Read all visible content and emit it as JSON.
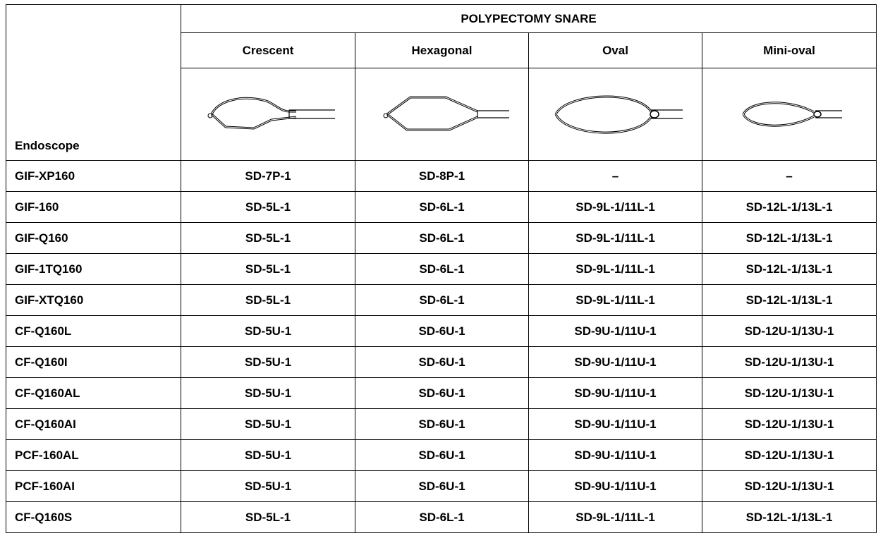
{
  "header": {
    "title": "POLYPECTOMY SNARE",
    "corner": "Endoscope",
    "columns": [
      "Crescent",
      "Hexagonal",
      "Oval",
      "Mini-oval"
    ]
  },
  "table": {
    "rows": [
      [
        "GIF-XP160",
        "SD-7P-1",
        "SD-8P-1",
        "–",
        "–"
      ],
      [
        "GIF-160",
        "SD-5L-1",
        "SD-6L-1",
        "SD-9L-1/11L-1",
        "SD-12L-1/13L-1"
      ],
      [
        "GIF-Q160",
        "SD-5L-1",
        "SD-6L-1",
        "SD-9L-1/11L-1",
        "SD-12L-1/13L-1"
      ],
      [
        "GIF-1TQ160",
        "SD-5L-1",
        "SD-6L-1",
        "SD-9L-1/11L-1",
        "SD-12L-1/13L-1"
      ],
      [
        "GIF-XTQ160",
        "SD-5L-1",
        "SD-6L-1",
        "SD-9L-1/11L-1",
        "SD-12L-1/13L-1"
      ],
      [
        "CF-Q160L",
        "SD-5U-1",
        "SD-6U-1",
        "SD-9U-1/11U-1",
        "SD-12U-1/13U-1"
      ],
      [
        "CF-Q160I",
        "SD-5U-1",
        "SD-6U-1",
        "SD-9U-1/11U-1",
        "SD-12U-1/13U-1"
      ],
      [
        "CF-Q160AL",
        "SD-5U-1",
        "SD-6U-1",
        "SD-9U-1/11U-1",
        "SD-12U-1/13U-1"
      ],
      [
        "CF-Q160AI",
        "SD-5U-1",
        "SD-6U-1",
        "SD-9U-1/11U-1",
        "SD-12U-1/13U-1"
      ],
      [
        "PCF-160AL",
        "SD-5U-1",
        "SD-6U-1",
        "SD-9U-1/11U-1",
        "SD-12U-1/13U-1"
      ],
      [
        "PCF-160AI",
        "SD-5U-1",
        "SD-6U-1",
        "SD-9U-1/11U-1",
        "SD-12U-1/13U-1"
      ],
      [
        "CF-Q160S",
        "SD-5L-1",
        "SD-6L-1",
        "SD-9L-1/11L-1",
        "SD-12L-1/13L-1"
      ]
    ]
  }
}
